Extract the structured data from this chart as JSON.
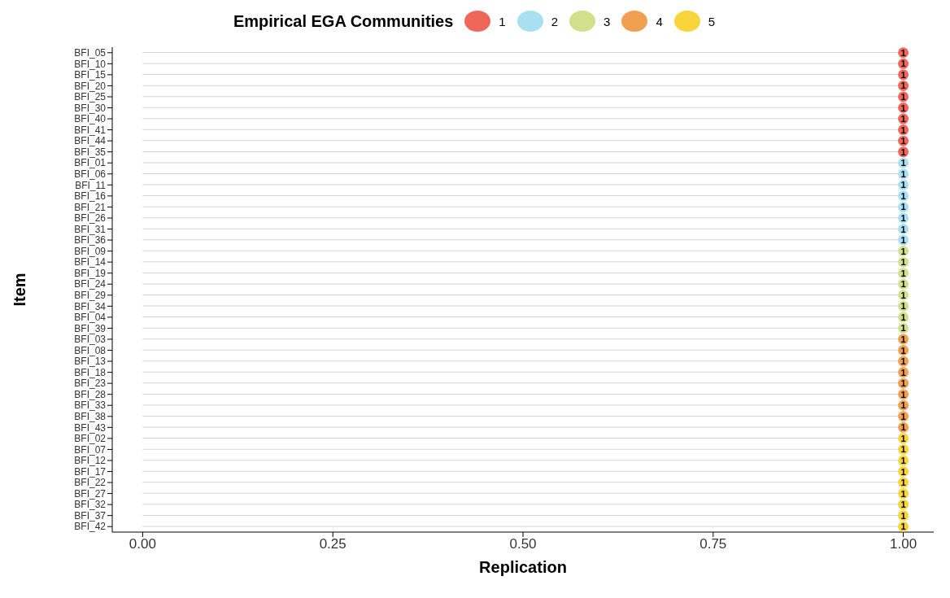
{
  "chart_data": {
    "type": "lollipop",
    "orientation": "horizontal",
    "xlabel": "Replication",
    "ylabel": "Item",
    "legend_title": "Empirical EGA Communities",
    "legend": "top",
    "categories": [
      "BFI_05",
      "BFI_10",
      "BFI_15",
      "BFI_20",
      "BFI_25",
      "BFI_30",
      "BFI_40",
      "BFI_41",
      "BFI_44",
      "BFI_35",
      "BFI_01",
      "BFI_06",
      "BFI_11",
      "BFI_16",
      "BFI_21",
      "BFI_26",
      "BFI_31",
      "BFI_36",
      "BFI_09",
      "BFI_14",
      "BFI_19",
      "BFI_24",
      "BFI_29",
      "BFI_34",
      "BFI_04",
      "BFI_39",
      "BFI_03",
      "BFI_08",
      "BFI_13",
      "BFI_18",
      "BFI_23",
      "BFI_28",
      "BFI_33",
      "BFI_38",
      "BFI_43",
      "BFI_02",
      "BFI_07",
      "BFI_12",
      "BFI_17",
      "BFI_22",
      "BFI_27",
      "BFI_32",
      "BFI_37",
      "BFI_42"
    ],
    "series": [
      {
        "name": "1",
        "color": "#f0675a",
        "values": [
          1,
          1,
          1,
          1,
          1,
          1,
          1,
          1,
          1,
          1,
          null,
          null,
          null,
          null,
          null,
          null,
          null,
          null,
          null,
          null,
          null,
          null,
          null,
          null,
          null,
          null,
          null,
          null,
          null,
          null,
          null,
          null,
          null,
          null,
          null,
          null,
          null,
          null,
          null,
          null,
          null,
          null,
          null,
          null
        ],
        "value_labels": [
          "1",
          "1",
          "1",
          "1",
          "1",
          "1",
          "1",
          "1",
          "1",
          "1",
          null,
          null,
          null,
          null,
          null,
          null,
          null,
          null,
          null,
          null,
          null,
          null,
          null,
          null,
          null,
          null,
          null,
          null,
          null,
          null,
          null,
          null,
          null,
          null,
          null,
          null,
          null,
          null,
          null,
          null,
          null,
          null,
          null,
          null
        ]
      },
      {
        "name": "2",
        "color": "#a8e0f2",
        "values": [
          null,
          null,
          null,
          null,
          null,
          null,
          null,
          null,
          null,
          null,
          1,
          1,
          1,
          1,
          1,
          1,
          1,
          1,
          null,
          null,
          null,
          null,
          null,
          null,
          null,
          null,
          null,
          null,
          null,
          null,
          null,
          null,
          null,
          null,
          null,
          null,
          null,
          null,
          null,
          null,
          null,
          null,
          null,
          null
        ],
        "value_labels": [
          null,
          null,
          null,
          null,
          null,
          null,
          null,
          null,
          null,
          null,
          "1",
          "1",
          "1",
          "1",
          "1",
          "1",
          "1",
          "1",
          null,
          null,
          null,
          null,
          null,
          null,
          null,
          null,
          null,
          null,
          null,
          null,
          null,
          null,
          null,
          null,
          null,
          null,
          null,
          null,
          null,
          null,
          null,
          null,
          null,
          null
        ]
      },
      {
        "name": "3",
        "color": "#d2e08e",
        "values": [
          null,
          null,
          null,
          null,
          null,
          null,
          null,
          null,
          null,
          null,
          null,
          null,
          null,
          null,
          null,
          null,
          null,
          null,
          1,
          1,
          1,
          1,
          1,
          1,
          1,
          1,
          null,
          null,
          null,
          null,
          null,
          null,
          null,
          null,
          null,
          null,
          null,
          null,
          null,
          null,
          null,
          null,
          null,
          null
        ],
        "value_labels": [
          null,
          null,
          null,
          null,
          null,
          null,
          null,
          null,
          null,
          null,
          null,
          null,
          null,
          null,
          null,
          null,
          null,
          null,
          "1",
          "1",
          "1",
          "1",
          "1",
          "1",
          "1",
          "1",
          null,
          null,
          null,
          null,
          null,
          null,
          null,
          null,
          null,
          null,
          null,
          null,
          null,
          null,
          null,
          null,
          null,
          null
        ]
      },
      {
        "name": "4",
        "color": "#f0a050",
        "values": [
          null,
          null,
          null,
          null,
          null,
          null,
          null,
          null,
          null,
          null,
          null,
          null,
          null,
          null,
          null,
          null,
          null,
          null,
          null,
          null,
          null,
          null,
          null,
          null,
          null,
          null,
          1,
          1,
          1,
          1,
          1,
          1,
          1,
          1,
          1,
          null,
          null,
          null,
          null,
          null,
          null,
          null,
          null,
          null
        ],
        "value_labels": [
          null,
          null,
          null,
          null,
          null,
          null,
          null,
          null,
          null,
          null,
          null,
          null,
          null,
          null,
          null,
          null,
          null,
          null,
          null,
          null,
          null,
          null,
          null,
          null,
          null,
          null,
          "1",
          "1",
          "1",
          "1",
          "1",
          "1",
          "1",
          "1",
          "1",
          null,
          null,
          null,
          null,
          null,
          null,
          null,
          null,
          null
        ]
      },
      {
        "name": "5",
        "color": "#f8d53a",
        "values": [
          null,
          null,
          null,
          null,
          null,
          null,
          null,
          null,
          null,
          null,
          null,
          null,
          null,
          null,
          null,
          null,
          null,
          null,
          null,
          null,
          null,
          null,
          null,
          null,
          null,
          null,
          null,
          null,
          null,
          null,
          null,
          null,
          null,
          null,
          null,
          1,
          1,
          1,
          1,
          1,
          1,
          1,
          1,
          1
        ],
        "value_labels": [
          null,
          null,
          null,
          null,
          null,
          null,
          null,
          null,
          null,
          null,
          null,
          null,
          null,
          null,
          null,
          null,
          null,
          null,
          null,
          null,
          null,
          null,
          null,
          null,
          null,
          null,
          null,
          null,
          null,
          null,
          null,
          null,
          null,
          null,
          null,
          "1",
          "1",
          "1",
          "1",
          "1",
          "1",
          "1",
          "1",
          "1"
        ]
      }
    ],
    "xlim": [
      -0.04,
      1.04
    ],
    "xticks": [
      {
        "value": 0,
        "label": "0.00"
      },
      {
        "value": 0.25,
        "label": "0.25"
      },
      {
        "value": 0.5,
        "label": "0.50"
      },
      {
        "value": 0.75,
        "label": "0.75"
      },
      {
        "value": 1,
        "label": "1.00"
      }
    ]
  }
}
